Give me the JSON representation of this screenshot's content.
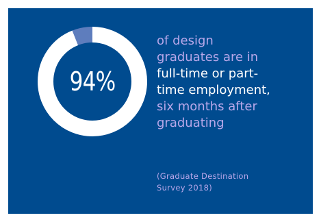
{
  "colors": {
    "background": "#004b8f",
    "ring_filled": "#ffffff",
    "ring_remainder": "#5e7dbd",
    "accent_text": "#b8a8ea",
    "highlight_text": "#ffffff"
  },
  "chart_data": {
    "type": "pie",
    "style": "donut",
    "values": [
      94,
      6
    ],
    "label": "94%"
  },
  "statement": {
    "lines": [
      {
        "text": "of design",
        "style": "accent"
      },
      {
        "text": "graduates are in",
        "style": "accent"
      },
      {
        "text": "full-time or part-",
        "style": "highlight"
      },
      {
        "text": "time employment,",
        "style": "highlight"
      },
      {
        "text": "six months after",
        "style": "accent"
      },
      {
        "text": "graduating",
        "style": "accent"
      }
    ]
  },
  "source": {
    "line1": "(Graduate Destination",
    "line2": "Survey 2018)"
  }
}
